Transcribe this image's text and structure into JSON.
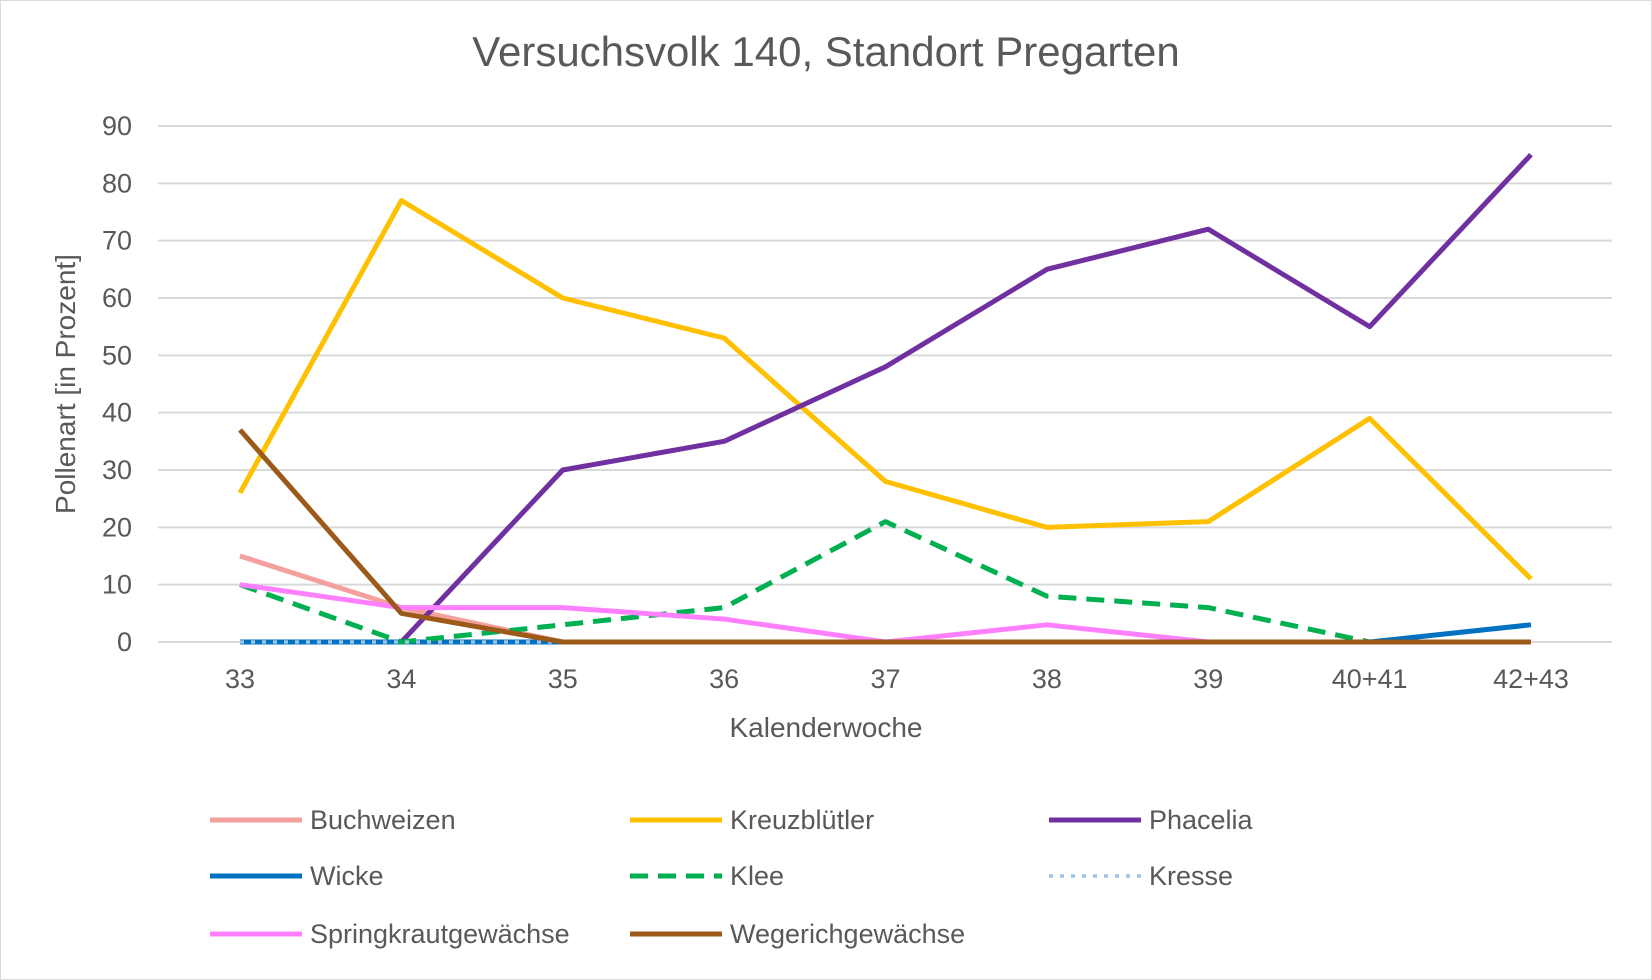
{
  "chart_data": {
    "type": "line",
    "title": "Versuchsvolk 140, Standort Pregarten",
    "xlabel": "Kalenderwoche",
    "ylabel": "Pollenart [in Prozent]",
    "ylim": [
      0,
      90
    ],
    "yticks": [
      0,
      10,
      20,
      30,
      40,
      50,
      60,
      70,
      80,
      90
    ],
    "grid": true,
    "legend_position": "bottom",
    "categories": [
      "33",
      "34",
      "35",
      "36",
      "37",
      "38",
      "39",
      "40+41",
      "42+43"
    ],
    "series": [
      {
        "name": "Buchweizen",
        "color": "#f4a09c",
        "dash": "solid",
        "values": [
          15,
          6,
          0,
          0,
          0,
          0,
          0,
          0,
          0
        ]
      },
      {
        "name": "Kreuzblütler",
        "color": "#ffc000",
        "dash": "solid",
        "values": [
          26,
          77,
          60,
          53,
          28,
          20,
          21,
          39,
          11
        ]
      },
      {
        "name": "Phacelia",
        "color": "#7030a0",
        "dash": "solid",
        "values": [
          null,
          0,
          30,
          35,
          48,
          65,
          72,
          55,
          85
        ]
      },
      {
        "name": "Wicke",
        "color": "#0070c0",
        "dash": "solid",
        "values": [
          0,
          0,
          0,
          0,
          0,
          0,
          0,
          0,
          3
        ]
      },
      {
        "name": "Klee",
        "color": "#00b050",
        "dash": "dash",
        "values": [
          10,
          0,
          3,
          6,
          21,
          8,
          6,
          0,
          null
        ]
      },
      {
        "name": "Kresse",
        "color": "#9dc3e6",
        "dash": "dot",
        "values": [
          0,
          0,
          0,
          null,
          null,
          null,
          null,
          null,
          null
        ]
      },
      {
        "name": "Springkrautgewächse",
        "color": "#ff80ff",
        "dash": "solid",
        "values": [
          10,
          6,
          6,
          4,
          0,
          3,
          0,
          0,
          0
        ]
      },
      {
        "name": "Wegerichgewächse",
        "color": "#9c5a1a",
        "dash": "solid",
        "values": [
          37,
          5,
          0,
          0,
          0,
          0,
          0,
          0,
          0
        ]
      }
    ]
  }
}
